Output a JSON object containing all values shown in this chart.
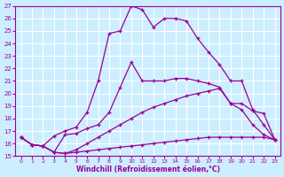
{
  "xlabel": "Windchill (Refroidissement éolien,°C)",
  "background_color": "#cceeff",
  "grid_color": "#ffffff",
  "line_color": "#990099",
  "xlim": [
    -0.5,
    23.5
  ],
  "ylim": [
    15,
    27
  ],
  "yticks": [
    15,
    16,
    17,
    18,
    19,
    20,
    21,
    22,
    23,
    24,
    25,
    26,
    27
  ],
  "xticks": [
    0,
    1,
    2,
    3,
    4,
    5,
    6,
    7,
    8,
    9,
    10,
    11,
    12,
    13,
    14,
    15,
    16,
    17,
    18,
    19,
    20,
    21,
    22,
    23
  ],
  "series": [
    {
      "x": [
        0,
        1,
        2,
        3,
        4,
        5,
        6,
        7,
        8,
        9,
        10,
        11,
        12,
        13,
        14,
        15,
        16,
        17,
        18,
        19,
        20,
        21,
        22,
        23
      ],
      "y": [
        16.5,
        15.9,
        15.8,
        15.3,
        15.2,
        15.3,
        15.4,
        15.5,
        15.6,
        15.7,
        15.8,
        15.9,
        16.0,
        16.1,
        16.2,
        16.3,
        16.4,
        16.5,
        16.5,
        16.5,
        16.5,
        16.5,
        16.5,
        16.3
      ]
    },
    {
      "x": [
        0,
        1,
        2,
        3,
        4,
        5,
        6,
        7,
        8,
        9,
        10,
        11,
        12,
        13,
        14,
        15,
        16,
        17,
        18,
        19,
        20,
        21,
        22,
        23
      ],
      "y": [
        16.5,
        15.9,
        15.8,
        15.3,
        15.2,
        15.5,
        16.0,
        16.5,
        17.0,
        17.5,
        18.0,
        18.5,
        18.9,
        19.2,
        19.5,
        19.8,
        20.0,
        20.2,
        20.4,
        19.2,
        18.7,
        17.5,
        16.7,
        16.3
      ]
    },
    {
      "x": [
        0,
        1,
        2,
        3,
        4,
        5,
        6,
        7,
        8,
        9,
        10,
        11,
        12,
        13,
        14,
        15,
        16,
        17,
        18,
        19,
        20,
        21,
        22,
        23
      ],
      "y": [
        16.5,
        15.9,
        15.8,
        15.3,
        16.7,
        16.8,
        17.2,
        17.5,
        18.5,
        20.5,
        22.5,
        21.0,
        21.0,
        21.0,
        21.2,
        21.2,
        21.0,
        20.8,
        20.5,
        19.2,
        19.2,
        18.6,
        18.4,
        16.3
      ]
    },
    {
      "x": [
        0,
        1,
        2,
        3,
        4,
        5,
        6,
        7,
        8,
        9,
        10,
        11,
        12,
        13,
        14,
        15,
        16,
        17,
        18,
        19,
        20,
        21,
        22,
        23
      ],
      "y": [
        16.5,
        15.9,
        15.8,
        16.6,
        17.0,
        17.3,
        18.5,
        21.0,
        24.8,
        25.0,
        27.0,
        26.7,
        25.3,
        26.0,
        26.0,
        25.8,
        24.4,
        23.3,
        22.3,
        21.0,
        21.0,
        18.7,
        17.5,
        16.3
      ]
    }
  ]
}
